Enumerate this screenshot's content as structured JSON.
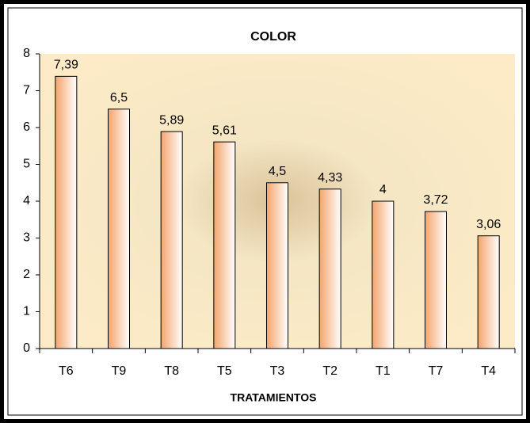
{
  "chart_data": {
    "type": "bar",
    "title": "COLOR",
    "x_label": "TRATAMIENTOS",
    "categories": [
      "T6",
      "T9",
      "T8",
      "T5",
      "T3",
      "T2",
      "T1",
      "T7",
      "T4"
    ],
    "values": [
      7.39,
      6.5,
      5.89,
      5.61,
      4.5,
      4.33,
      4,
      3.72,
      3.06
    ],
    "value_labels": [
      "7,39",
      "6,5",
      "5,89",
      "5,61",
      "4,5",
      "4,33",
      "4",
      "3,72",
      "3,06"
    ],
    "color": "#f4a46c",
    "ylim": [
      0,
      8
    ],
    "yticks": [
      0,
      1,
      2,
      3,
      4,
      5,
      6,
      7,
      8
    ],
    "grid": false
  }
}
